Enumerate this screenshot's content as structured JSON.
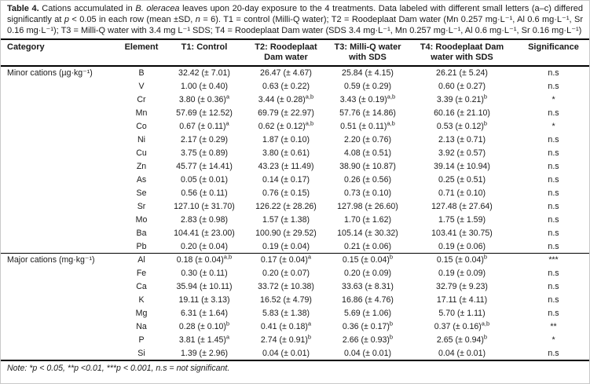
{
  "caption": {
    "segments": [
      {
        "t": "Table 4.",
        "b": true
      },
      {
        "t": " Cations accumulated in "
      },
      {
        "t": "B. oleracea",
        "i": true
      },
      {
        "t": " leaves upon 20-day exposure to the 4 treatments. Data labeled with different small letters (a–c) differed significantly at "
      },
      {
        "t": "p",
        "i": true
      },
      {
        "t": " < 0.05 in each row (mean ±SD, "
      },
      {
        "t": "n",
        "i": true
      },
      {
        "t": " = 6). T1 = control (Milli-Q water); T2 = Roodeplaat Dam water (Mn 0.257 mg·L⁻¹, Al 0.6 mg·L⁻¹, Sr 0.16 mg·L⁻¹); T3 = Milli-Q water with 3.4 mg L⁻¹ SDS; T4 = Roodeplaat Dam water (SDS 3.4 mg·L⁻¹, Mn 0.257 mg·L⁻¹, Al 0.6 mg·L⁻¹, Sr 0.16 mg·L⁻¹)"
      }
    ]
  },
  "table": {
    "headers": {
      "category": "Category",
      "element": "Element",
      "t1": "T1: Control",
      "t2": "T2: Roodeplaat Dam water",
      "t3": "T3: Milli-Q water with SDS",
      "t4": "T4: Roodeplaat Dam water with SDS",
      "significance": "Significance"
    },
    "sections": [
      {
        "category": "Minor cations (µg·kg⁻¹)",
        "rows": [
          {
            "element": "B",
            "values": [
              "32.42 (± 7.01)",
              "26.47 (± 4.67)",
              "25.84 (± 4.15)",
              "26.21 (± 5.24)"
            ],
            "significance": "n.s"
          },
          {
            "element": "V",
            "values": [
              "1.00 (± 0.40)",
              "0.63 (± 0.22)",
              "0.59 (± 0.29)",
              "0.60 (± 0.27)"
            ],
            "significance": "n.s"
          },
          {
            "element": "Cr",
            "values": [
              "3.80 (± 0.36)^a",
              "3.44 (± 0.28)^a,b",
              "3.43 (± 0.19)^a,b",
              "3.39 (± 0.21)^b"
            ],
            "significance": "*"
          },
          {
            "element": "Mn",
            "values": [
              "57.69 (± 12.52)",
              "69.79 (± 22.97)",
              "57.76 (± 14.86)",
              "60.16 (± 21.10)"
            ],
            "significance": "n.s"
          },
          {
            "element": "Co",
            "values": [
              "0.67 (± 0.11)^a",
              "0.62 (± 0.12)^a,b",
              "0.51 (± 0.11)^a,b",
              "0.53 (± 0.12)^b"
            ],
            "significance": "*"
          },
          {
            "element": "Ni",
            "values": [
              "2.17 (± 0.29)",
              "1.87 (± 0.10)",
              "2.20 (± 0.76)",
              "2.13 (± 0.71)"
            ],
            "significance": "n.s"
          },
          {
            "element": "Cu",
            "values": [
              "3.75 (± 0.89)",
              "3.80 (± 0.61)",
              "4.08 (± 0.51)",
              "3.92 (± 0.57)"
            ],
            "significance": "n.s"
          },
          {
            "element": "Zn",
            "values": [
              "45.77 (± 14.41)",
              "43.23 (± 11.49)",
              "38.90 (± 10.87)",
              "39.14 (± 10.94)"
            ],
            "significance": "n.s"
          },
          {
            "element": "As",
            "values": [
              "0.05 (± 0.01)",
              "0.14 (± 0.17)",
              "0.26 (± 0.56)",
              "0.25 (± 0.51)"
            ],
            "significance": "n.s"
          },
          {
            "element": "Se",
            "values": [
              "0.56 (± 0.11)",
              "0.76 (± 0.15)",
              "0.73 (± 0.10)",
              "0.71 (± 0.10)"
            ],
            "significance": "n.s"
          },
          {
            "element": "Sr",
            "values": [
              "127.10 (± 31.70)",
              "126.22 (± 28.26)",
              "127.98 (± 26.60)",
              "127.48 (± 27.64)"
            ],
            "significance": "n.s"
          },
          {
            "element": "Mo",
            "values": [
              "2.83 (± 0.98)",
              "1.57 (± 1.38)",
              "1.70 (± 1.62)",
              "1.75 (± 1.59)"
            ],
            "significance": "n.s"
          },
          {
            "element": "Ba",
            "values": [
              "104.41 (± 23.00)",
              "100.90 (± 29.52)",
              "105.14 (± 30.32)",
              "103.41 (± 30.75)"
            ],
            "significance": "n.s"
          },
          {
            "element": "Pb",
            "values": [
              "0.20 (± 0.04)",
              "0.19 (± 0.04)",
              "0.21 (± 0.06)",
              "0.19 (± 0.06)"
            ],
            "significance": "n.s"
          }
        ]
      },
      {
        "category": "Major cations (mg·kg⁻¹)",
        "rows": [
          {
            "element": "Al",
            "values": [
              "0.18 (± 0.04)^a,b",
              "0.17 (± 0.04)^a",
              "0.15 (± 0.04)^b",
              "0.15 (± 0.04)^b"
            ],
            "significance": "***"
          },
          {
            "element": "Fe",
            "values": [
              "0.30 (± 0.11)",
              "0.20 (± 0.07)",
              "0.20 (± 0.09)",
              "0.19 (± 0.09)"
            ],
            "significance": "n.s"
          },
          {
            "element": "Ca",
            "values": [
              "35.94 (± 10.11)",
              "33.72 (± 10.38)",
              "33.63 (± 8.31)",
              "32.79 (± 9.23)"
            ],
            "significance": "n.s"
          },
          {
            "element": "K",
            "values": [
              "19.11 (± 3.13)",
              "16.52 (± 4.79)",
              "16.86 (± 4.76)",
              "17.11 (± 4.11)"
            ],
            "significance": "n.s"
          },
          {
            "element": "Mg",
            "values": [
              "6.31 (± 1.64)",
              "5.83 (± 1.38)",
              "5.69 (± 1.06)",
              "5.70 (± 1.11)"
            ],
            "significance": "n.s"
          },
          {
            "element": "Na",
            "values": [
              "0.28 (± 0.10)^b",
              "0.41 (± 0.18)^a",
              "0.36 (± 0.17)^b",
              "0.37 (± 0.16)^a,b"
            ],
            "significance": "**"
          },
          {
            "element": "P",
            "values": [
              "3.81 (± 1.45)^a",
              "2.74 (± 0.91)^b",
              "2.66 (± 0.93)^b",
              "2.65 (± 0.94)^b"
            ],
            "significance": "*"
          },
          {
            "element": "Si",
            "values": [
              "1.39 (± 2.96)",
              "0.04 (± 0.01)",
              "0.04 (± 0.01)",
              "0.04 (± 0.01)"
            ],
            "significance": "n.s"
          }
        ]
      }
    ]
  },
  "note": "Note: *p < 0.05, **p <0.01, ***p < 0.001, n.s = not significant.",
  "colors": {
    "text": "#1a1a1a",
    "rule": "#000000",
    "background": "#ffffff"
  }
}
